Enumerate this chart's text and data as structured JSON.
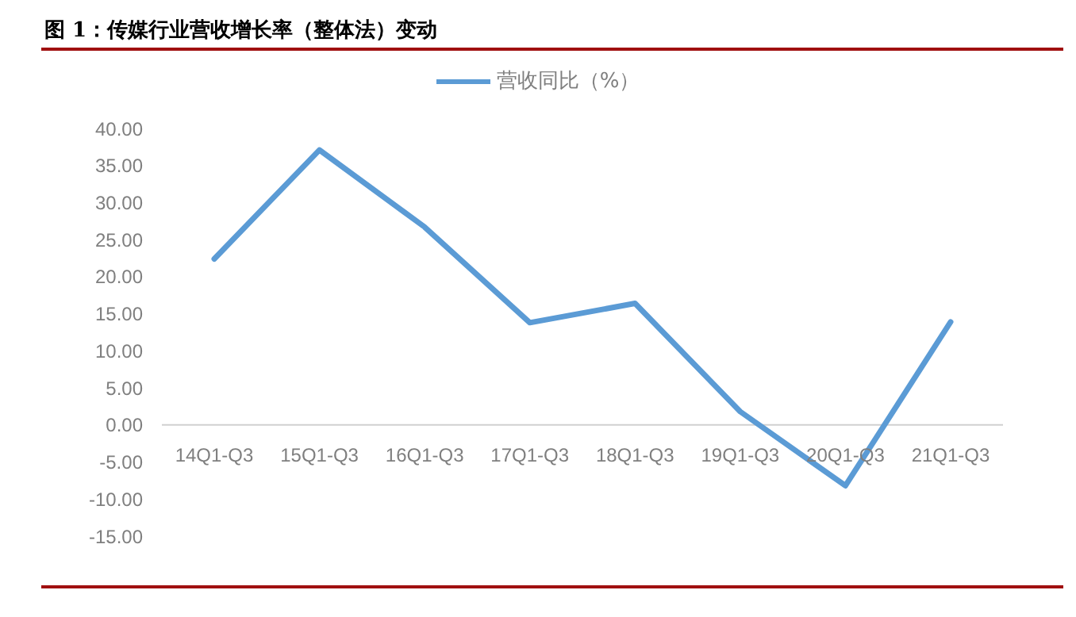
{
  "chart_data": {
    "type": "line",
    "title": "图 1：传媒行业营收增长率（整体法）变动",
    "categories": [
      "14Q1-Q3",
      "15Q1-Q3",
      "16Q1-Q3",
      "17Q1-Q3",
      "18Q1-Q3",
      "19Q1-Q3",
      "20Q1-Q3",
      "21Q1-Q3"
    ],
    "series": [
      {
        "name": "营收同比（%）",
        "color": "#5b9bd5",
        "values": [
          22.4,
          37.1,
          26.7,
          13.8,
          16.4,
          1.8,
          -8.2,
          13.9
        ]
      }
    ],
    "ylim": [
      -15,
      40
    ],
    "yticks": [
      {
        "value": -15,
        "label": "-15.00"
      },
      {
        "value": -10,
        "label": "-10.00"
      },
      {
        "value": -5,
        "label": "-5.00"
      },
      {
        "value": 0,
        "label": "0.00"
      },
      {
        "value": 5,
        "label": "5.00"
      },
      {
        "value": 10,
        "label": "10.00"
      },
      {
        "value": 15,
        "label": "15.00"
      },
      {
        "value": 20,
        "label": "20.00"
      },
      {
        "value": 25,
        "label": "25.00"
      },
      {
        "value": 30,
        "label": "30.00"
      },
      {
        "value": 35,
        "label": "35.00"
      },
      {
        "value": 40,
        "label": "40.00"
      }
    ],
    "grid": false,
    "legend": "top",
    "marker": "none",
    "line_style": "solid"
  }
}
